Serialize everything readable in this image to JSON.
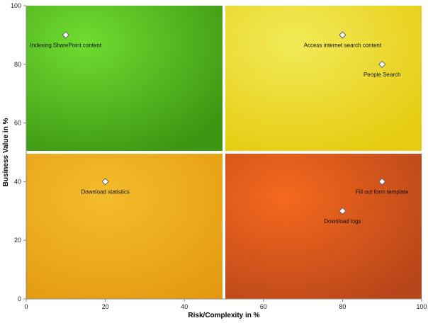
{
  "chart_data": {
    "type": "scatter",
    "xlabel": "Risk/Complexity in %",
    "ylabel": "Business Value in %",
    "xlim": [
      0,
      100
    ],
    "ylim": [
      0,
      100
    ],
    "xticks": [
      0,
      20,
      40,
      60,
      80,
      100
    ],
    "yticks": [
      0,
      20,
      40,
      60,
      80,
      100
    ],
    "grid": false,
    "quadrant_split": {
      "x": 50,
      "y": 50
    },
    "quadrants": [
      {
        "name": "top-left",
        "color": "#5cc71f"
      },
      {
        "name": "top-right",
        "color": "#eddc2a"
      },
      {
        "name": "bottom-left",
        "color": "#eeae1c"
      },
      {
        "name": "bottom-right",
        "color": "#e95e18"
      }
    ],
    "points": [
      {
        "label": "Indexing SharePoint content",
        "x": 10,
        "y": 90,
        "label_align": "middle"
      },
      {
        "label": "Access internet search content",
        "x": 80,
        "y": 90,
        "label_align": "middle"
      },
      {
        "label": "People Search",
        "x": 90,
        "y": 80,
        "label_align": "middle"
      },
      {
        "label": "Download statistics",
        "x": 20,
        "y": 40,
        "label_align": "middle"
      },
      {
        "label": "Fill out form template",
        "x": 90,
        "y": 40,
        "label_align": "middle"
      },
      {
        "label": "Download logs",
        "x": 80,
        "y": 30,
        "label_align": "middle"
      }
    ],
    "marker": {
      "shape": "diamond",
      "fill": "#ffffff",
      "stroke": "#666666"
    }
  }
}
